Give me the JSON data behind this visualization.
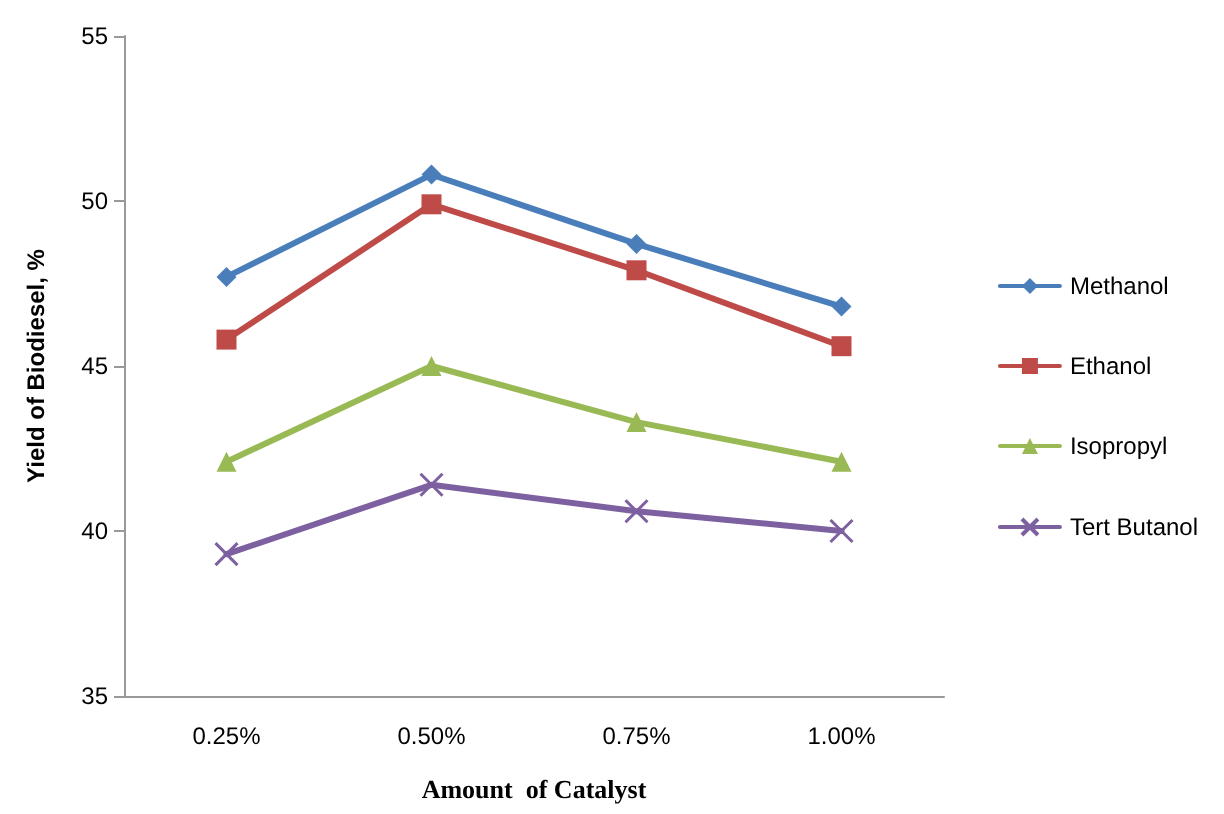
{
  "chart_data": {
    "type": "line",
    "xlabel": "Amount  of Catalyst",
    "ylabel": "Yield of Biodiesel, %",
    "categories": [
      "0.25%",
      "0.50%",
      "0.75%",
      "1.00%"
    ],
    "series": [
      {
        "name": "Methanol",
        "color": "#4a7ebb",
        "marker": "diamond",
        "values": [
          47.7,
          50.8,
          48.7,
          46.8
        ]
      },
      {
        "name": "Ethanol",
        "color": "#be4b48",
        "marker": "square",
        "values": [
          45.8,
          49.9,
          47.9,
          45.6
        ]
      },
      {
        "name": "Isopropyl",
        "color": "#98b954",
        "marker": "triangle",
        "values": [
          42.1,
          45.0,
          43.3,
          42.1
        ]
      },
      {
        "name": "Tert Butanol",
        "color": "#7d60a0",
        "marker": "cross",
        "values": [
          39.3,
          41.4,
          40.6,
          40.0
        ]
      }
    ],
    "ylim": [
      35,
      55
    ],
    "yticks": [
      35,
      40,
      45,
      50,
      55
    ],
    "grid": false,
    "legend": "right"
  }
}
